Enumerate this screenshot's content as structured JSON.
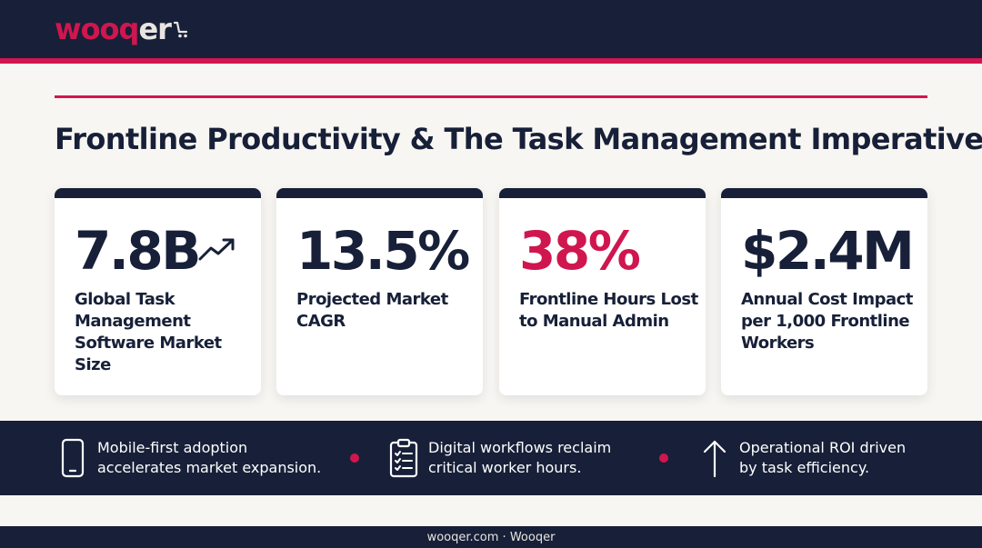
{
  "brand": {
    "logo_part1": "wooq",
    "logo_part2": "er",
    "accent_color": "#d0164e",
    "navy_color": "#172038"
  },
  "page": {
    "title": "Frontline Productivity & The Task Management Imperative"
  },
  "stats": [
    {
      "value": "7.8B",
      "label": "Global Task Management Software Market Size",
      "icon": "trend-up-icon",
      "accent": false
    },
    {
      "value": "13.5%",
      "label": "Projected Market CAGR",
      "accent": false
    },
    {
      "value": "38%",
      "label": "Frontline Hours Lost to Manual Admin",
      "accent": true
    },
    {
      "value": "$2.4M",
      "label": "Annual Cost Impact per 1,000 Frontline Workers",
      "accent": false
    }
  ],
  "highlights": [
    {
      "icon": "smartphone-icon",
      "line1": "Mobile-first adoption",
      "line2": "accelerates market expansion."
    },
    {
      "icon": "checklist-clipboard-icon",
      "line1": "Digital workflows reclaim",
      "line2": "critical worker hours."
    },
    {
      "icon": "arrow-up-icon",
      "line1": "Operational ROI driven",
      "line2": "by task efficiency."
    }
  ],
  "footer": {
    "text": "wooqer.com · Wooqer"
  }
}
